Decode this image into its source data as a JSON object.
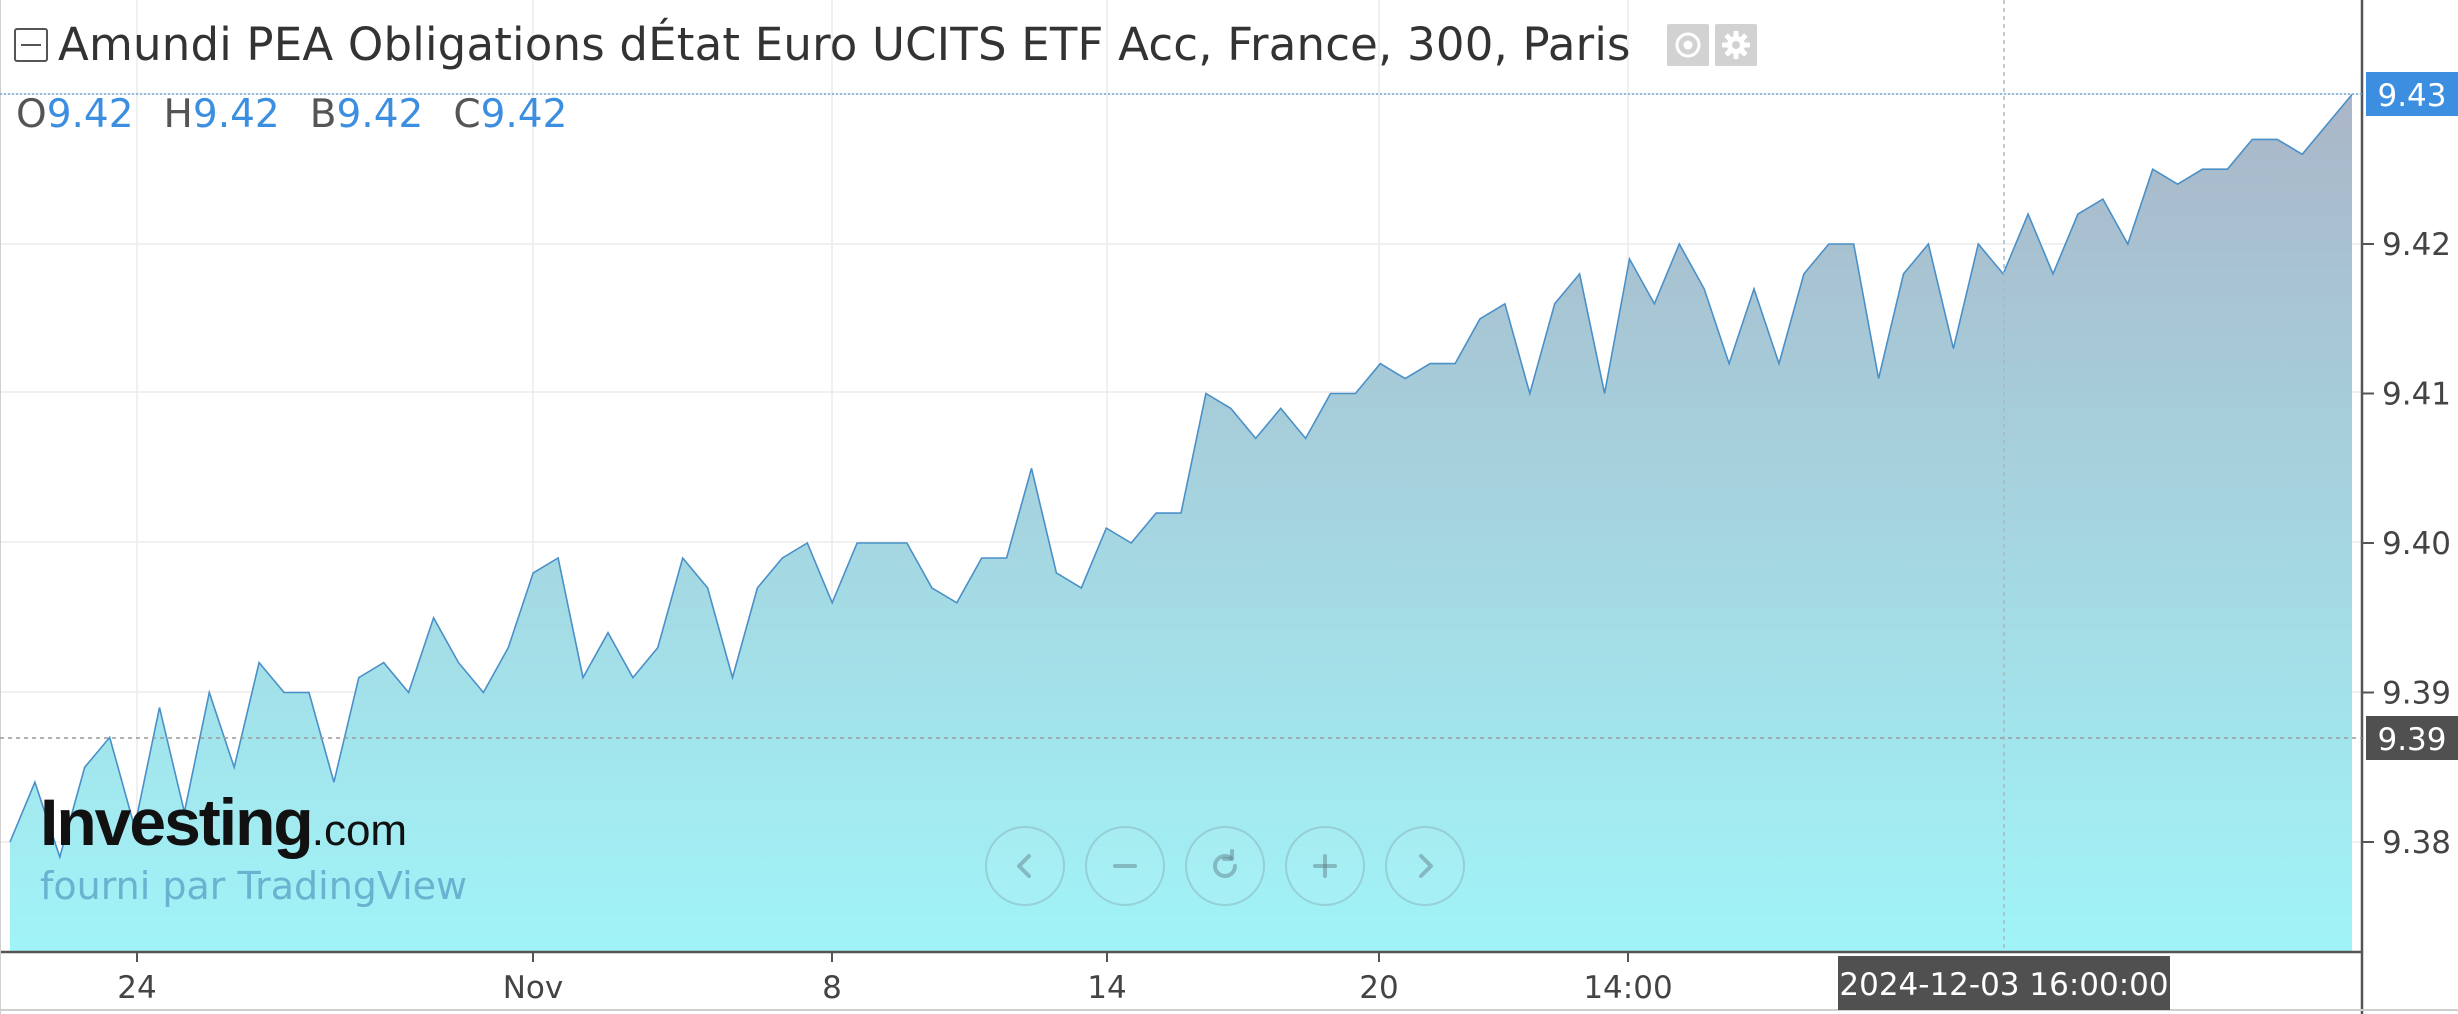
{
  "header": {
    "title": "Amundi PEA Obligations dÉtat Euro UCITS ETF Acc, France, 300, Paris",
    "icons": [
      "collapse-icon",
      "eye-icon",
      "gear-icon"
    ]
  },
  "ohlc": [
    {
      "label": "O",
      "value": "9.42"
    },
    {
      "label": "H",
      "value": "9.42"
    },
    {
      "label": "B",
      "value": "9.42"
    },
    {
      "label": "C",
      "value": "9.42"
    }
  ],
  "branding": {
    "logo_text": "Investing",
    "logo_suffix": ".com",
    "provider": "fourni par TradingView"
  },
  "navigation": [
    "chevron-left-icon",
    "minus-icon",
    "reset-icon",
    "plus-icon",
    "chevron-right-icon"
  ],
  "colors": {
    "line": "#4a90c8",
    "area_top": "#aab6c8",
    "area_bottom": "#a0f4f8",
    "last_price_badge": "#3c8fe0",
    "crosshair_badge": "#505050"
  },
  "chart_data": {
    "type": "area",
    "title": "Amundi PEA Obligations dÉtat Euro UCITS ETF Acc, France, 300, Paris",
    "ylim": [
      9.372,
      9.437
    ],
    "y_ticks": [
      "9.38",
      "9.39",
      "9.40",
      "9.41",
      "9.42"
    ],
    "x_ticks": [
      "24",
      "Nov",
      "8",
      "14",
      "20",
      "14:00"
    ],
    "last_price": "9.43",
    "crosshair_price": "9.39",
    "crosshair_time": "2024-12-03 16:00:00",
    "grid": true,
    "values": [
      9.38,
      9.384,
      9.379,
      9.385,
      9.387,
      9.381,
      9.389,
      9.382,
      9.39,
      9.385,
      9.392,
      9.39,
      9.39,
      9.384,
      9.391,
      9.392,
      9.39,
      9.395,
      9.392,
      9.39,
      9.393,
      9.398,
      9.399,
      9.391,
      9.394,
      9.391,
      9.393,
      9.399,
      9.397,
      9.391,
      9.397,
      9.399,
      9.4,
      9.396,
      9.4,
      9.4,
      9.4,
      9.397,
      9.396,
      9.399,
      9.399,
      9.405,
      9.398,
      9.397,
      9.401,
      9.4,
      9.402,
      9.402,
      9.41,
      9.409,
      9.407,
      9.409,
      9.407,
      9.41,
      9.41,
      9.412,
      9.411,
      9.412,
      9.412,
      9.415,
      9.416,
      9.41,
      9.416,
      9.418,
      9.41,
      9.419,
      9.416,
      9.42,
      9.417,
      9.412,
      9.417,
      9.412,
      9.418,
      9.42,
      9.42,
      9.411,
      9.418,
      9.42,
      9.413,
      9.42,
      9.418,
      9.422,
      9.418,
      9.422,
      9.423,
      9.42,
      9.425,
      9.424,
      9.425,
      9.425,
      9.427,
      9.427,
      9.426,
      9.428,
      9.43
    ]
  }
}
